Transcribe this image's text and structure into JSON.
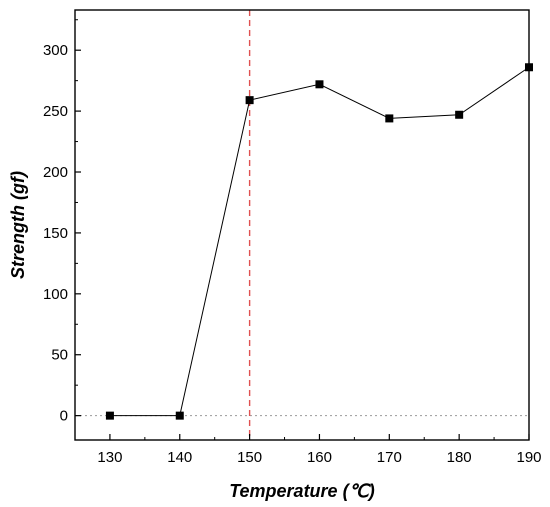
{
  "chart_data": {
    "type": "line",
    "title": "",
    "xlabel": "Temperature (℃)",
    "ylabel": "Strength (gf)",
    "xlim": [
      125,
      190
    ],
    "ylim": [
      -20,
      333
    ],
    "x_ticks": [
      130,
      140,
      150,
      160,
      170,
      180,
      190
    ],
    "y_ticks": [
      0,
      50,
      100,
      150,
      200,
      250,
      300
    ],
    "grid": false,
    "legend": "none",
    "series": [
      {
        "x": [
          130,
          140,
          150,
          160,
          170,
          180,
          190
        ],
        "y": [
          0,
          0,
          259,
          272,
          244,
          247,
          286
        ],
        "color": "#000000",
        "marker": "square"
      }
    ],
    "reference_lines": [
      {
        "orientation": "vertical",
        "x": 150,
        "style": "dashed",
        "color": "#e05050"
      },
      {
        "orientation": "horizontal",
        "y": 0,
        "style": "dotted",
        "color": "#999999"
      }
    ]
  }
}
